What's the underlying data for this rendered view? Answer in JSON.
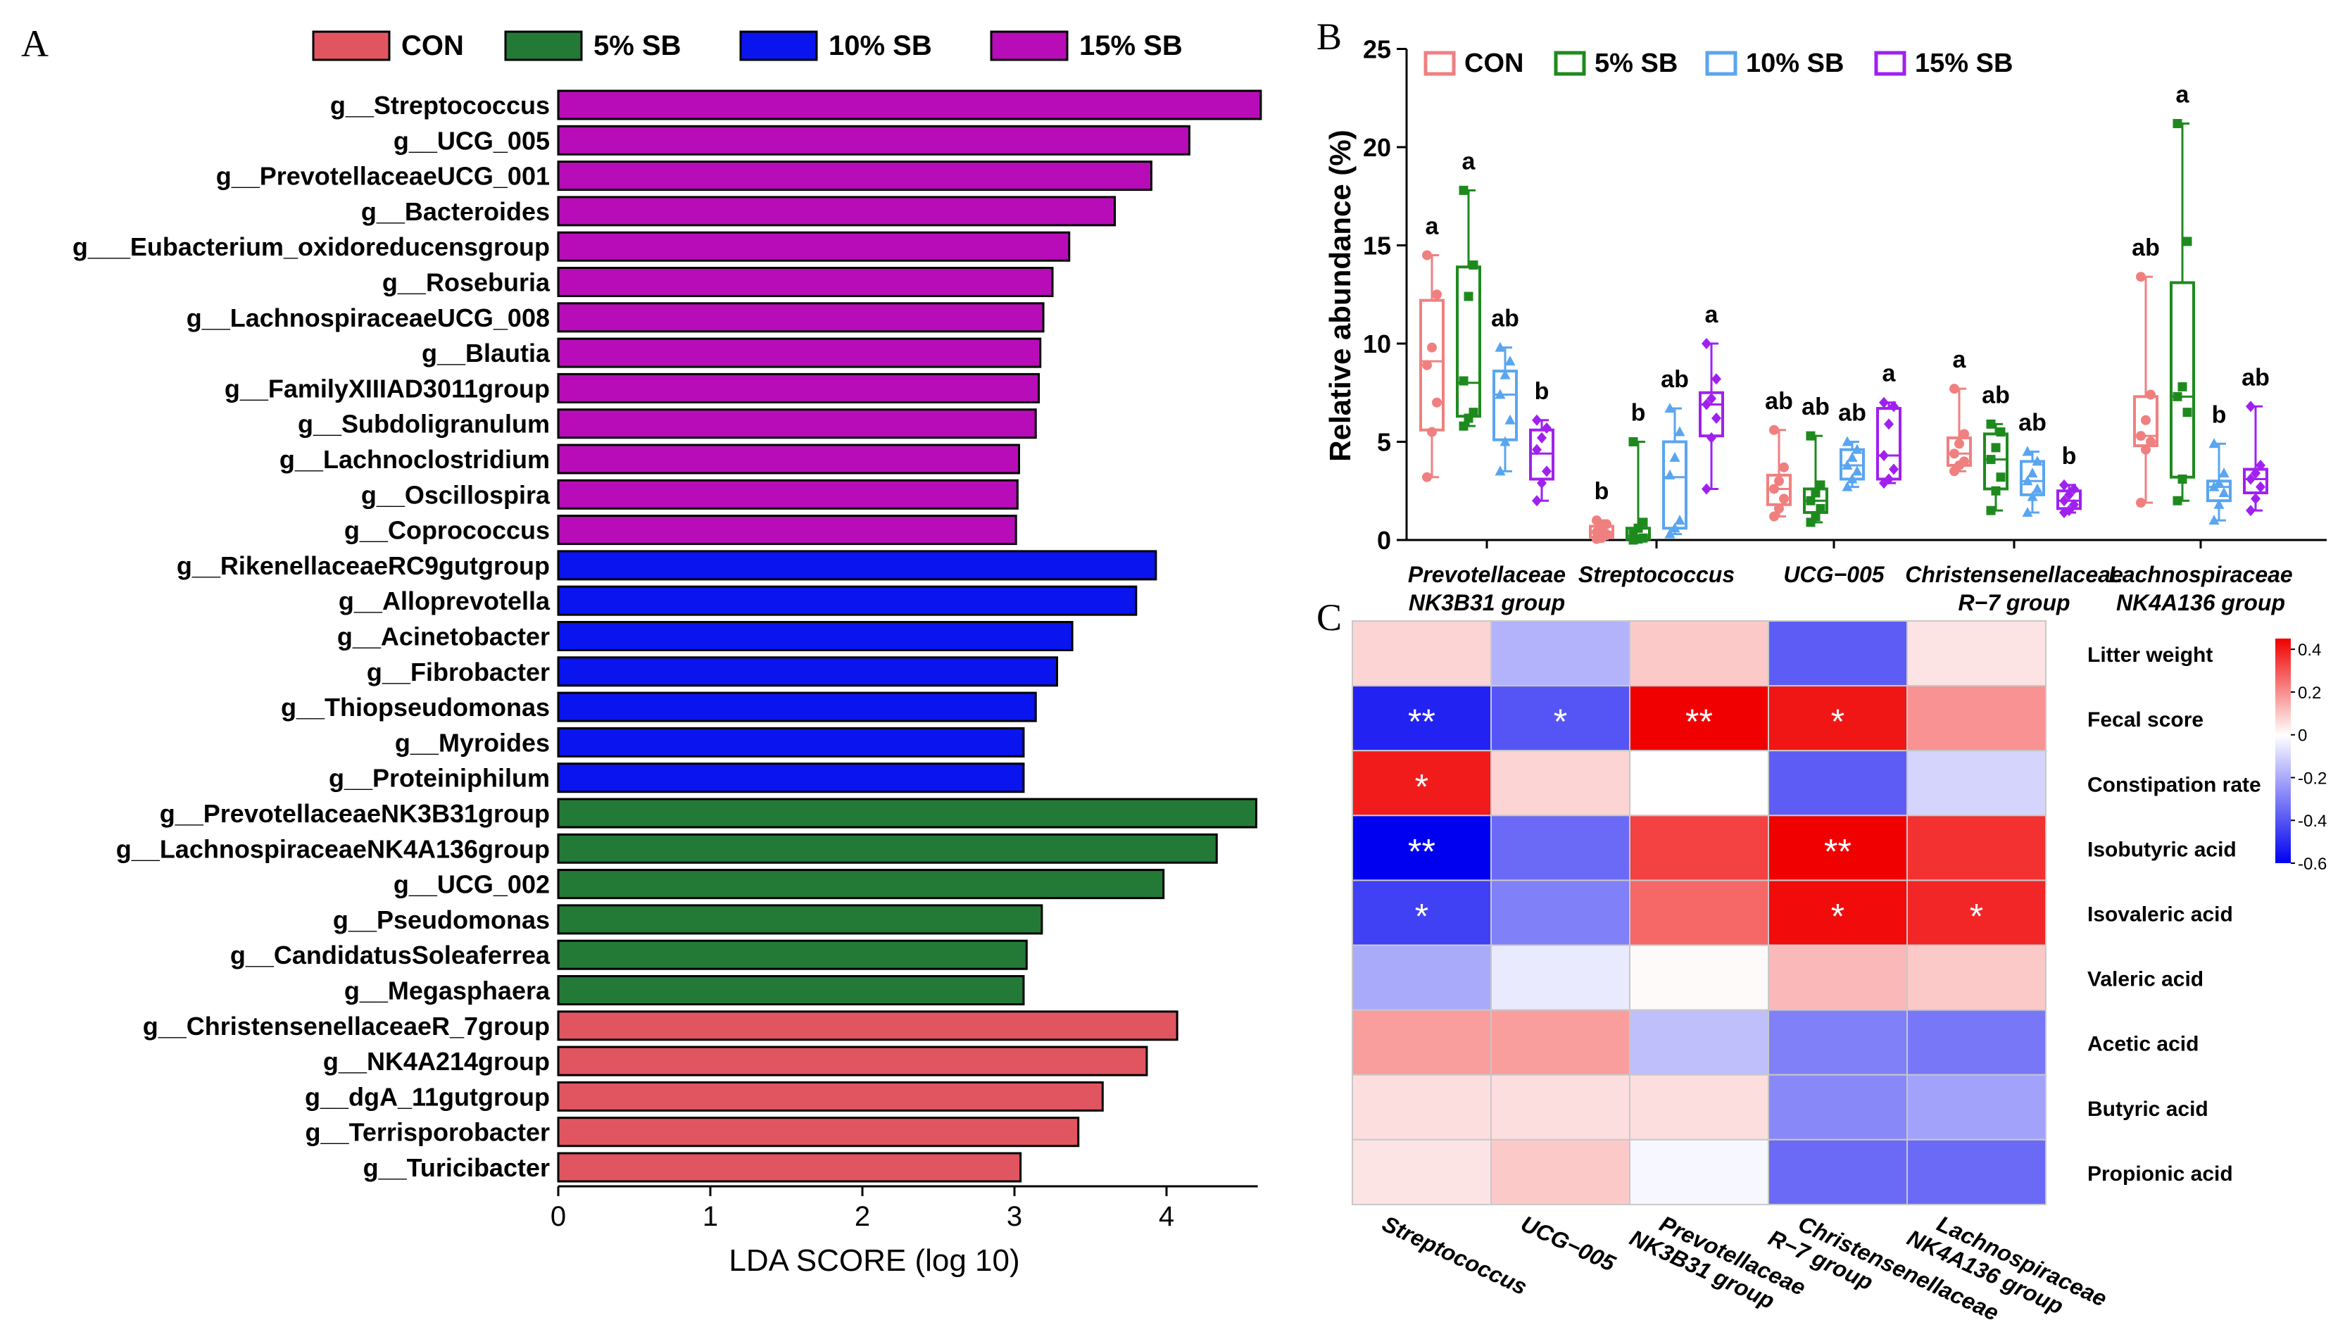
{
  "figure": {
    "panel_labels": [
      "A",
      "B",
      "C"
    ]
  },
  "chart_data": [
    {
      "id": "A",
      "type": "bar",
      "orientation": "horizontal",
      "title": "",
      "xlabel": "LDA SCORE (log 10)",
      "ylabel": "",
      "xlim": [
        0,
        4.6
      ],
      "xticks": [
        0,
        1,
        2,
        3,
        4
      ],
      "legend": [
        {
          "name": "CON",
          "color": "#e15561"
        },
        {
          "name": "5% SB",
          "color": "#237a36"
        },
        {
          "name": "10% SB",
          "color": "#0a14ee"
        },
        {
          "name": "15% SB",
          "color": "#b80cb8"
        }
      ],
      "bars": [
        {
          "label": "g__Streptococcus",
          "value": 4.62,
          "group": "15% SB"
        },
        {
          "label": "g__UCG_005",
          "value": 4.15,
          "group": "15% SB"
        },
        {
          "label": "g__PrevotellaceaeUCG_001",
          "value": 3.9,
          "group": "15% SB"
        },
        {
          "label": "g__Bacteroides",
          "value": 3.66,
          "group": "15% SB"
        },
        {
          "label": "g___Eubacterium_oxidoreducensgroup",
          "value": 3.36,
          "group": "15% SB"
        },
        {
          "label": "g__Roseburia",
          "value": 3.25,
          "group": "15% SB"
        },
        {
          "label": "g__LachnospiraceaeUCG_008",
          "value": 3.19,
          "group": "15% SB"
        },
        {
          "label": "g__Blautia",
          "value": 3.17,
          "group": "15% SB"
        },
        {
          "label": "g__FamilyXIIIAD3011group",
          "value": 3.16,
          "group": "15% SB"
        },
        {
          "label": "g__Subdoligranulum",
          "value": 3.14,
          "group": "15% SB"
        },
        {
          "label": "g__Lachnoclostridium",
          "value": 3.03,
          "group": "15% SB"
        },
        {
          "label": "g__Oscillospira",
          "value": 3.02,
          "group": "15% SB"
        },
        {
          "label": "g__Coprococcus",
          "value": 3.01,
          "group": "15% SB"
        },
        {
          "label": "g__RikenellaceaeRC9gutgroup",
          "value": 3.93,
          "group": "10% SB"
        },
        {
          "label": "g__Alloprevotella",
          "value": 3.8,
          "group": "10% SB"
        },
        {
          "label": "g__Acinetobacter",
          "value": 3.38,
          "group": "10% SB"
        },
        {
          "label": "g__Fibrobacter",
          "value": 3.28,
          "group": "10% SB"
        },
        {
          "label": "g__Thiopseudomonas",
          "value": 3.14,
          "group": "10% SB"
        },
        {
          "label": "g__Myroides",
          "value": 3.06,
          "group": "10% SB"
        },
        {
          "label": "g__Proteiniphilum",
          "value": 3.06,
          "group": "10% SB"
        },
        {
          "label": "g__PrevotellaceaeNK3B31group",
          "value": 4.59,
          "group": "5% SB"
        },
        {
          "label": "g__LachnospiraceaeNK4A136group",
          "value": 4.33,
          "group": "5% SB"
        },
        {
          "label": "g__UCG_002",
          "value": 3.98,
          "group": "5% SB"
        },
        {
          "label": "g__Pseudomonas",
          "value": 3.18,
          "group": "5% SB"
        },
        {
          "label": "g__CandidatusSoleaferrea",
          "value": 3.08,
          "group": "5% SB"
        },
        {
          "label": "g__Megasphaera",
          "value": 3.06,
          "group": "5% SB"
        },
        {
          "label": "g__ChristensenellaceaeR_7group",
          "value": 4.07,
          "group": "CON"
        },
        {
          "label": "g__NK4A214group",
          "value": 3.87,
          "group": "CON"
        },
        {
          "label": "g__dgA_11gutgroup",
          "value": 3.58,
          "group": "CON"
        },
        {
          "label": "g__Terrisporobacter",
          "value": 3.42,
          "group": "CON"
        },
        {
          "label": "g__Turicibacter",
          "value": 3.04,
          "group": "CON"
        }
      ]
    },
    {
      "id": "B",
      "type": "box",
      "title": "",
      "xlabel": "",
      "ylabel": "Relative abundance (%)",
      "ylim": [
        0,
        25
      ],
      "yticks": [
        0,
        5,
        10,
        15,
        20,
        25
      ],
      "legend": [
        {
          "name": "CON",
          "color": "#f08080"
        },
        {
          "name": "5% SB",
          "color": "#1e8a1e"
        },
        {
          "name": "10% SB",
          "color": "#5aa5f0"
        },
        {
          "name": "15% SB",
          "color": "#a020f0"
        }
      ],
      "categories": [
        {
          "line1": "Prevotellaceae",
          "line2": "NK3B31 group"
        },
        {
          "line1": "Streptococcus",
          "line2": ""
        },
        {
          "line1": "UCG−005",
          "line2": ""
        },
        {
          "line1": "Christensenellaceae",
          "line2": "R−7 group"
        },
        {
          "line1": "Lachnospiraceae",
          "line2": "NK4A136 group"
        }
      ],
      "boxes": [
        [
          {
            "min": 3.2,
            "q1": 5.6,
            "median": 9.1,
            "q3": 12.2,
            "max": 14.5,
            "sig": "a",
            "points": [
              3.2,
              5.5,
              7.0,
              8.9,
              9.8,
              12.5,
              14.5
            ]
          },
          {
            "min": 5.8,
            "q1": 6.3,
            "median": 8.0,
            "q3": 13.9,
            "max": 17.8,
            "sig": "a",
            "points": [
              5.8,
              6.2,
              6.5,
              8.1,
              12.4,
              14.0,
              17.8
            ]
          },
          {
            "min": 3.5,
            "q1": 5.1,
            "median": 7.4,
            "q3": 8.6,
            "max": 9.8,
            "sig": "ab",
            "points": [
              3.5,
              5.0,
              6.1,
              7.4,
              8.4,
              9.1,
              9.8
            ]
          },
          {
            "min": 2.0,
            "q1": 3.1,
            "median": 4.4,
            "q3": 5.6,
            "max": 6.1,
            "sig": "b",
            "points": [
              2.0,
              2.9,
              3.5,
              4.6,
              5.2,
              5.7,
              6.1
            ]
          }
        ],
        [
          {
            "min": 0.05,
            "q1": 0.15,
            "median": 0.4,
            "q3": 0.7,
            "max": 1.0,
            "sig": "b",
            "points": [
              0.05,
              0.1,
              0.3,
              0.4,
              0.6,
              0.8,
              1.0
            ]
          },
          {
            "min": 0.0,
            "q1": 0.05,
            "median": 0.2,
            "q3": 0.6,
            "max": 5.0,
            "sig": "b",
            "points": [
              0.0,
              0.05,
              0.1,
              0.3,
              0.6,
              0.9,
              5.0
            ]
          },
          {
            "min": 0.3,
            "q1": 0.6,
            "median": 3.2,
            "q3": 5.0,
            "max": 6.7,
            "sig": "ab",
            "points": [
              0.3,
              0.6,
              1.0,
              3.3,
              4.2,
              5.5,
              6.7
            ]
          },
          {
            "min": 2.6,
            "q1": 5.3,
            "median": 6.9,
            "q3": 7.5,
            "max": 10.0,
            "sig": "a",
            "points": [
              2.6,
              5.2,
              6.2,
              6.9,
              7.2,
              8.2,
              10.0
            ]
          }
        ],
        [
          {
            "min": 1.2,
            "q1": 1.8,
            "median": 2.6,
            "q3": 3.3,
            "max": 5.6,
            "sig": "ab",
            "points": [
              1.2,
              1.6,
              2.1,
              2.6,
              3.0,
              3.7,
              5.6
            ]
          },
          {
            "min": 0.9,
            "q1": 1.4,
            "median": 2.0,
            "q3": 2.6,
            "max": 5.3,
            "sig": "ab",
            "points": [
              0.9,
              1.2,
              1.6,
              2.0,
              2.4,
              2.8,
              5.3
            ]
          },
          {
            "min": 2.7,
            "q1": 3.1,
            "median": 3.8,
            "q3": 4.6,
            "max": 5.0,
            "sig": "ab",
            "points": [
              2.7,
              3.1,
              3.5,
              3.8,
              4.2,
              4.6,
              5.0
            ]
          },
          {
            "min": 2.9,
            "q1": 3.1,
            "median": 4.3,
            "q3": 6.7,
            "max": 7.0,
            "sig": "a",
            "points": [
              2.9,
              3.1,
              3.6,
              4.3,
              5.9,
              6.8,
              7.0
            ]
          }
        ],
        [
          {
            "min": 3.5,
            "q1": 3.8,
            "median": 4.4,
            "q3": 5.2,
            "max": 7.7,
            "sig": "a",
            "points": [
              3.5,
              3.8,
              4.0,
              4.4,
              4.9,
              5.4,
              7.7
            ]
          },
          {
            "min": 1.5,
            "q1": 2.6,
            "median": 4.1,
            "q3": 5.4,
            "max": 5.9,
            "sig": "ab",
            "points": [
              1.5,
              2.5,
              3.2,
              4.1,
              4.7,
              5.5,
              5.9
            ]
          },
          {
            "min": 1.4,
            "q1": 2.3,
            "median": 3.0,
            "q3": 4.0,
            "max": 4.5,
            "sig": "ab",
            "points": [
              1.4,
              2.2,
              2.6,
              3.0,
              3.4,
              4.0,
              4.5
            ]
          },
          {
            "min": 1.4,
            "q1": 1.6,
            "median": 2.0,
            "q3": 2.5,
            "max": 2.8,
            "sig": "b",
            "points": [
              1.4,
              1.5,
              1.8,
              2.0,
              2.3,
              2.6,
              2.8
            ]
          }
        ],
        [
          {
            "min": 1.9,
            "q1": 4.8,
            "median": 5.3,
            "q3": 7.3,
            "max": 13.4,
            "sig": "ab",
            "points": [
              1.9,
              4.6,
              5.0,
              5.3,
              6.1,
              7.4,
              13.4
            ]
          },
          {
            "min": 2.0,
            "q1": 3.2,
            "median": 7.3,
            "q3": 13.1,
            "max": 21.2,
            "sig": "a",
            "points": [
              2.0,
              3.1,
              6.5,
              7.3,
              7.8,
              15.2,
              21.2
            ]
          },
          {
            "min": 1.0,
            "q1": 2.0,
            "median": 2.7,
            "q3": 3.0,
            "max": 4.9,
            "sig": "b",
            "points": [
              1.0,
              1.8,
              2.4,
              2.7,
              2.9,
              3.4,
              4.9
            ]
          },
          {
            "min": 1.5,
            "q1": 2.4,
            "median": 3.1,
            "q3": 3.6,
            "max": 6.8,
            "sig": "ab",
            "points": [
              1.5,
              2.1,
              2.7,
              3.1,
              3.4,
              3.8,
              6.8
            ]
          }
        ]
      ]
    },
    {
      "id": "C",
      "type": "heatmap",
      "title": "",
      "xlabel": "",
      "ylabel": "",
      "columns": [
        {
          "line1": "Streptococcus",
          "line2": ""
        },
        {
          "line1": "UCG−005",
          "line2": ""
        },
        {
          "line1": "Prevotellaceae",
          "line2": "NK3B31 group"
        },
        {
          "line1": "Christensenellaceae",
          "line2": "R−7 group"
        },
        {
          "line1": "Lachnospiraceae",
          "line2": "NK4A136 group"
        }
      ],
      "rows": [
        "Litter weight",
        "Fecal score",
        "Constipation rate",
        "Isobutyric acid",
        "Isovaleric acid",
        "Valeric acid",
        "Acetic acid",
        "Butyric acid",
        "Propionic acid"
      ],
      "values": [
        [
          0.08,
          -0.18,
          0.1,
          -0.38,
          0.05
        ],
        [
          -0.52,
          -0.4,
          0.47,
          0.43,
          0.2
        ],
        [
          0.42,
          0.08,
          0.0,
          -0.38,
          -0.1
        ],
        [
          -0.6,
          -0.35,
          0.35,
          0.47,
          0.38
        ],
        [
          -0.45,
          -0.3,
          0.28,
          0.45,
          0.4
        ],
        [
          -0.2,
          -0.05,
          0.01,
          0.13,
          0.1
        ],
        [
          0.18,
          0.18,
          -0.15,
          -0.3,
          -0.32
        ],
        [
          0.06,
          0.06,
          0.06,
          -0.28,
          -0.22
        ],
        [
          0.05,
          0.1,
          -0.02,
          -0.35,
          -0.35
        ]
      ],
      "significance": [
        [
          "",
          "",
          "",
          "",
          ""
        ],
        [
          "**",
          "*",
          "**",
          "*",
          ""
        ],
        [
          "*",
          "",
          "",
          "",
          ""
        ],
        [
          "**",
          "",
          "",
          "**",
          ""
        ],
        [
          "*",
          "",
          "",
          "*",
          "*"
        ],
        [
          "",
          "",
          "",
          "",
          ""
        ],
        [
          "",
          "",
          "",
          "",
          ""
        ],
        [
          "",
          "",
          "",
          "",
          ""
        ],
        [
          "",
          "",
          "",
          "",
          ""
        ]
      ],
      "colorbar": {
        "range": [
          -0.6,
          0.45
        ],
        "ticks": [
          0.4,
          0.2,
          0,
          -0.2,
          -0.4,
          -0.6
        ],
        "tick_labels": [
          "0.4",
          "0.2",
          "0",
          "-0.2",
          "-0.4",
          "-0.6"
        ],
        "low_color": "#0000f0",
        "mid_color": "#ffffff",
        "high_color": "#f00000"
      }
    }
  ]
}
